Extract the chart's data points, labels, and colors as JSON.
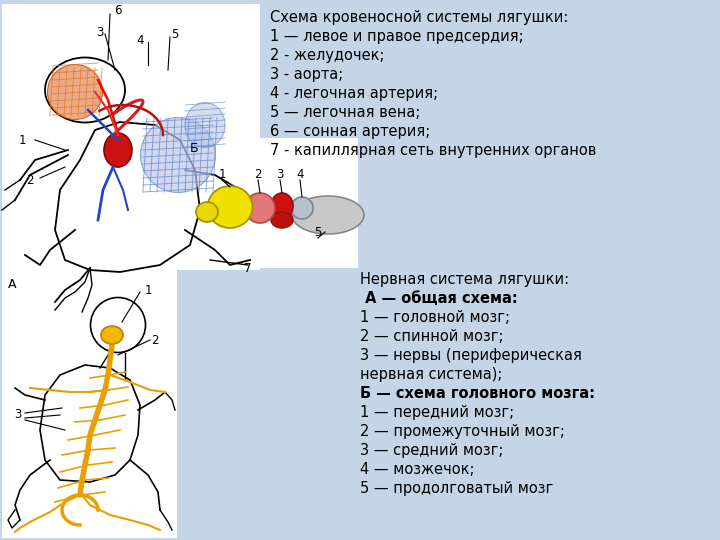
{
  "bg_color": "#c5d5e5",
  "white": "#ffffff",
  "title1": "Схема кровеносной системы лягушки:",
  "lines1": [
    "1 — левое и правое предсердия;",
    "2 - желудочек;",
    "3 - аорта;",
    "4 - легочная артерия;",
    "5 — легочная вена;",
    "6 — сонная артерия;",
    "7 - капиллярная сеть внутренних органов"
  ],
  "title2": "Нервная система лягушки:",
  "bold2": " А — общая схема:",
  "lines2": [
    "1 — головной мозг;",
    "2 — спинной мозг;",
    "3 — нервы (периферическая",
    "нервная система);"
  ],
  "bold3": "Б — схема головного мозга:",
  "lines3": [
    "1 — передний мозг;",
    "2 — промежуточный мозг;",
    "3 — средний мозг;",
    "4 — мозжечок;",
    "5 — продолговатый мозг"
  ],
  "text_fontsize": 10.5,
  "bold_fontsize": 10.5
}
